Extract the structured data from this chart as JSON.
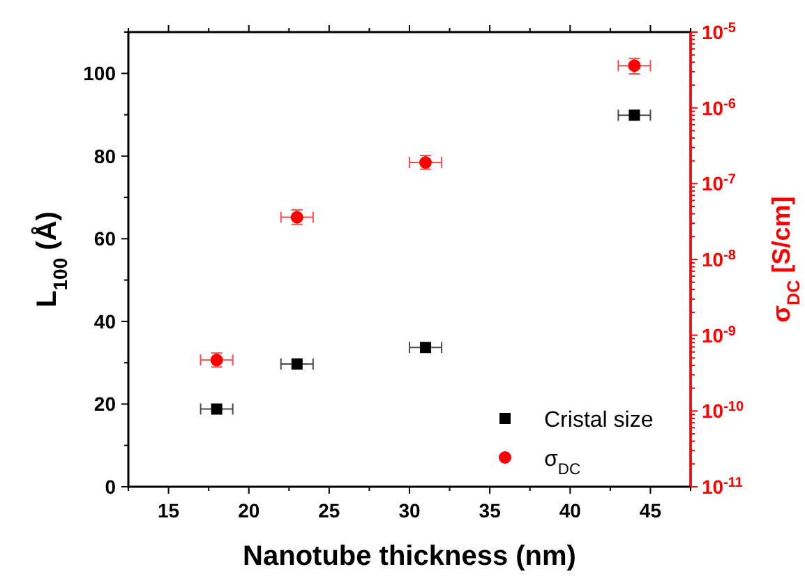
{
  "chart_data": {
    "type": "scatter",
    "xlabel": "Nanotube thickness (nm)",
    "ylabel": "L$_{100}$ (Å)",
    "y2label": "σ$_{DC}$ [S/cm]",
    "xlim": [
      12.5,
      47.5
    ],
    "xticks": [
      15,
      20,
      25,
      30,
      35,
      40,
      45
    ],
    "ylim": [
      0,
      110
    ],
    "yticks": [
      0,
      20,
      40,
      60,
      80,
      100
    ],
    "y2lim": [
      1e-11,
      1e-05
    ],
    "log": "y2",
    "y2ticks": [
      {
        "value": 1e-11,
        "label": "10$^{-11}$"
      },
      {
        "value": 1e-10,
        "label": "10$^{-10}$"
      },
      {
        "value": 1e-09,
        "label": "10$^{-9}$"
      },
      {
        "value": 1e-08,
        "label": "10$^{-8}$"
      },
      {
        "value": 1e-07,
        "label": "10$^{-7}$"
      },
      {
        "value": 1e-06,
        "label": "10$^{-6}$"
      },
      {
        "value": 1e-05,
        "label": "10$^{-5}$"
      }
    ],
    "grid": false,
    "legend": "bottom right",
    "series": [
      {
        "name": "Cristal size",
        "color": "#000000",
        "marker": "square",
        "x": [
          18,
          23,
          31,
          44
        ],
        "values": [
          18.8,
          29.7,
          33.7,
          89.9
        ],
        "xerrors": [
          1,
          1,
          1,
          1
        ]
      },
      {
        "name": "σ$_{DC}$",
        "color": "#ff0000",
        "marker": "circle",
        "axis": "y2",
        "x": [
          18,
          23,
          31,
          44
        ],
        "values": [
          4.7e-10,
          3.6e-08,
          1.9e-07,
          3.6e-06
        ],
        "xerrors": [
          1,
          1,
          1,
          1
        ],
        "errors": [
          [
            3.8e-10,
            5.8e-10
          ],
          [
            2.9e-08,
            4.5e-08
          ],
          [
            1.55e-07,
            2.35e-07
          ],
          [
            2.8e-06,
            4.5e-06
          ]
        ]
      }
    ]
  }
}
